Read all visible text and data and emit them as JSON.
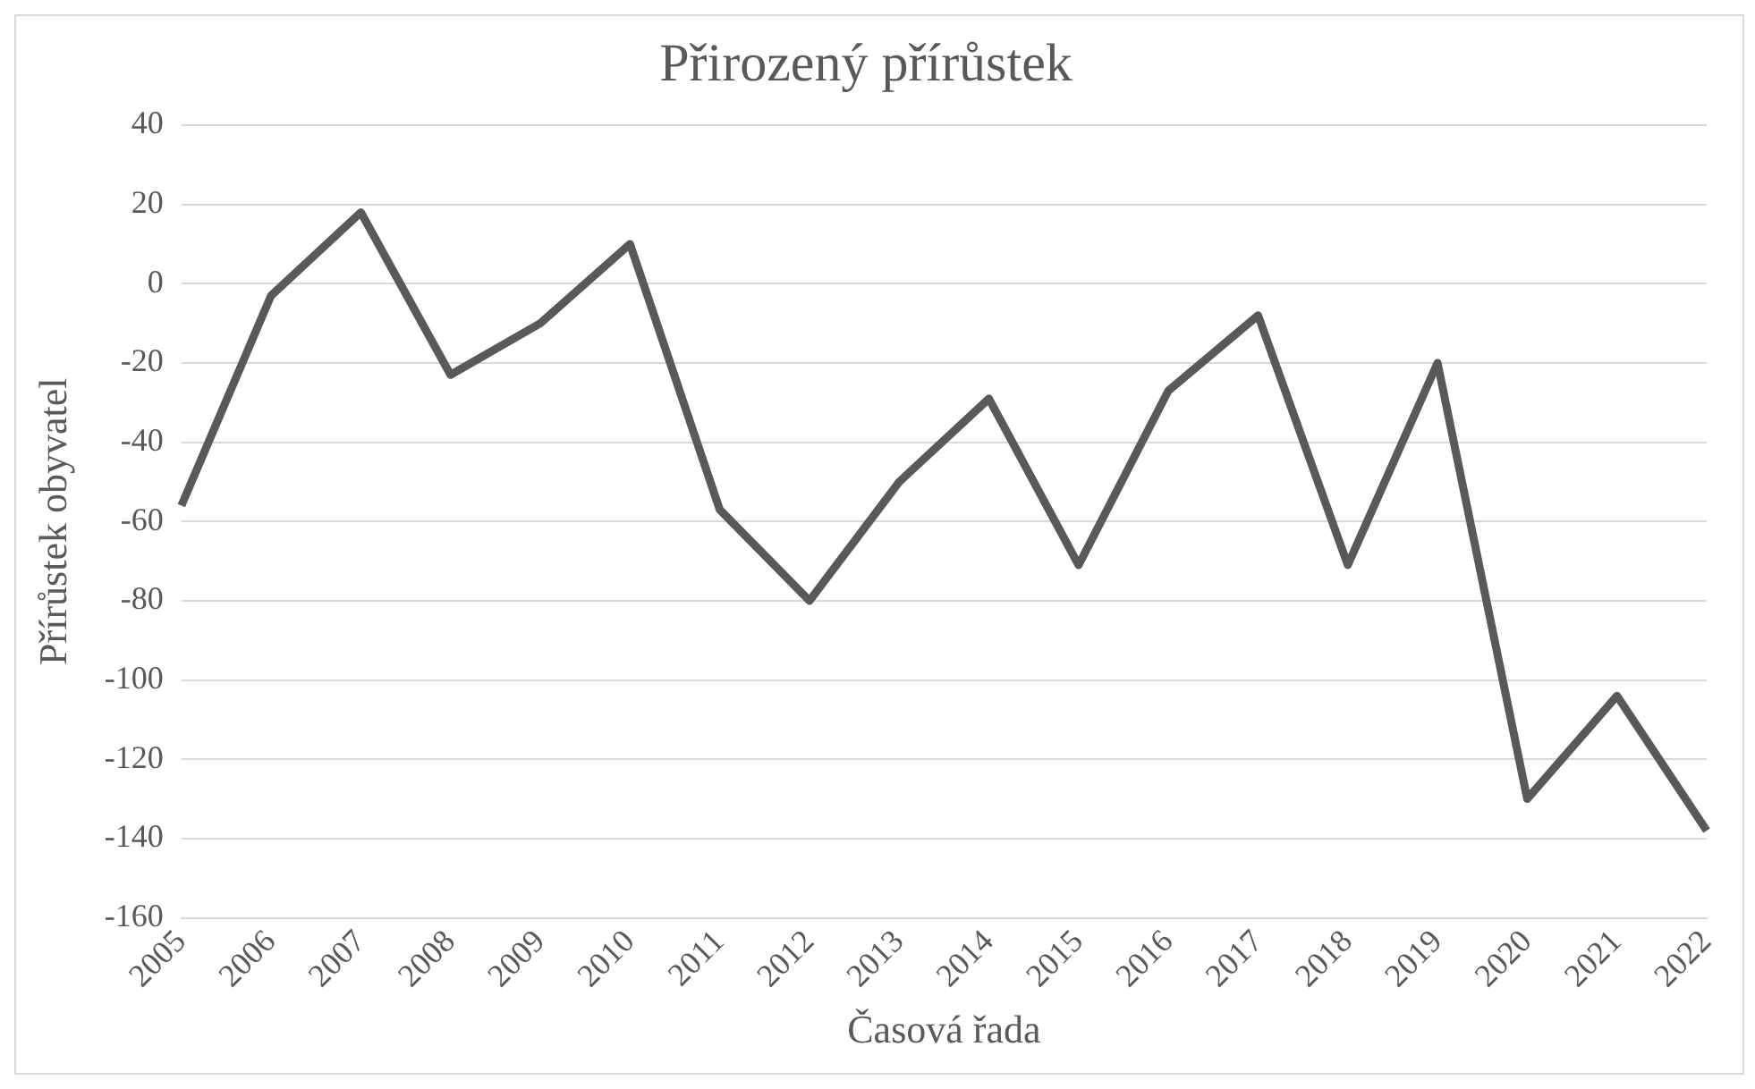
{
  "chart_data": {
    "type": "line",
    "title": "Přirozený přírůstek",
    "xlabel": "Časová řada",
    "ylabel": "Přírůstek obyvatel",
    "categories": [
      "2005",
      "2006",
      "2007",
      "2008",
      "2009",
      "2010",
      "2011",
      "2012",
      "2013",
      "2014",
      "2015",
      "2016",
      "2017",
      "2018",
      "2019",
      "2020",
      "2021",
      "2022"
    ],
    "series": [
      {
        "color": "#595959",
        "values": [
          -56,
          -3,
          18,
          -23,
          -10,
          10,
          -57,
          -80,
          -50,
          -29,
          -71,
          -27,
          -8,
          -71,
          -20,
          -130,
          -104,
          -138
        ]
      }
    ],
    "ylim": [
      -160,
      40
    ],
    "yticks": [
      -160,
      -140,
      -120,
      -100,
      -80,
      -60,
      -40,
      -20,
      0,
      20,
      40
    ],
    "grid": "y",
    "legend": false,
    "marker": "none",
    "line_style": "solid"
  }
}
